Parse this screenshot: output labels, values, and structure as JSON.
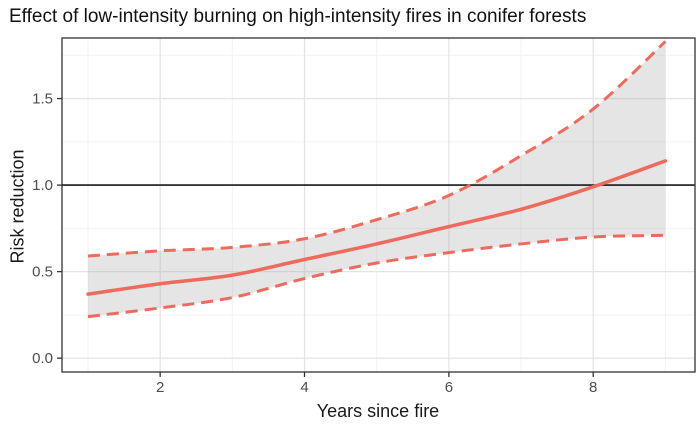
{
  "title": "Effect of low-intensity burning on high-intensity fires in conifer forests",
  "axes": {
    "x_label": "Years since fire",
    "y_label": "Risk reduction"
  },
  "colors": {
    "line": "#ee6a5c",
    "band_fill": "#999999",
    "band_opacity": 0.26,
    "grid_major": "#e4e4e4",
    "grid_minor": "#f2f2f2",
    "panel_border": "#333333",
    "panel_bg": "#ffffff",
    "reference_line": "#1a1a1a",
    "tick_text": "#4d4d4d",
    "tick_mark": "#333333"
  },
  "chart_data": {
    "type": "line",
    "title": "Effect of low-intensity burning on high-intensity fires in conifer forests",
    "xlabel": "Years since fire",
    "ylabel": "Risk reduction",
    "x": [
      1,
      2,
      3,
      4,
      5,
      6,
      7,
      8,
      9
    ],
    "series": [
      {
        "name": "mean_risk_reduction",
        "style": "solid",
        "values": [
          0.37,
          0.43,
          0.48,
          0.57,
          0.66,
          0.76,
          0.86,
          0.99,
          1.14
        ]
      },
      {
        "name": "lower_ci",
        "style": "dashed",
        "values": [
          0.24,
          0.29,
          0.35,
          0.46,
          0.55,
          0.61,
          0.66,
          0.7,
          0.71
        ]
      },
      {
        "name": "upper_ci",
        "style": "dashed",
        "values": [
          0.59,
          0.62,
          0.64,
          0.69,
          0.8,
          0.94,
          1.17,
          1.44,
          1.83
        ]
      }
    ],
    "band": {
      "between": [
        "lower_ci",
        "upper_ci"
      ]
    },
    "reference_line_y": 1.0,
    "xlim": [
      0.64,
      9.41
    ],
    "ylim": [
      -0.08,
      1.85
    ],
    "x_major_ticks": [
      2,
      4,
      6,
      8
    ],
    "x_minor_ticks": [
      1,
      3,
      5,
      7,
      9
    ],
    "y_major_ticks": [
      0.0,
      0.5,
      1.0,
      1.5
    ],
    "y_minor_ticks": [
      0.25,
      0.75,
      1.25,
      1.75
    ],
    "x_tick_labels": [
      "2",
      "4",
      "6",
      "8"
    ],
    "y_tick_labels": [
      "0.0",
      "0.5",
      "1.0",
      "1.5"
    ],
    "grid": true,
    "legend": "none"
  }
}
